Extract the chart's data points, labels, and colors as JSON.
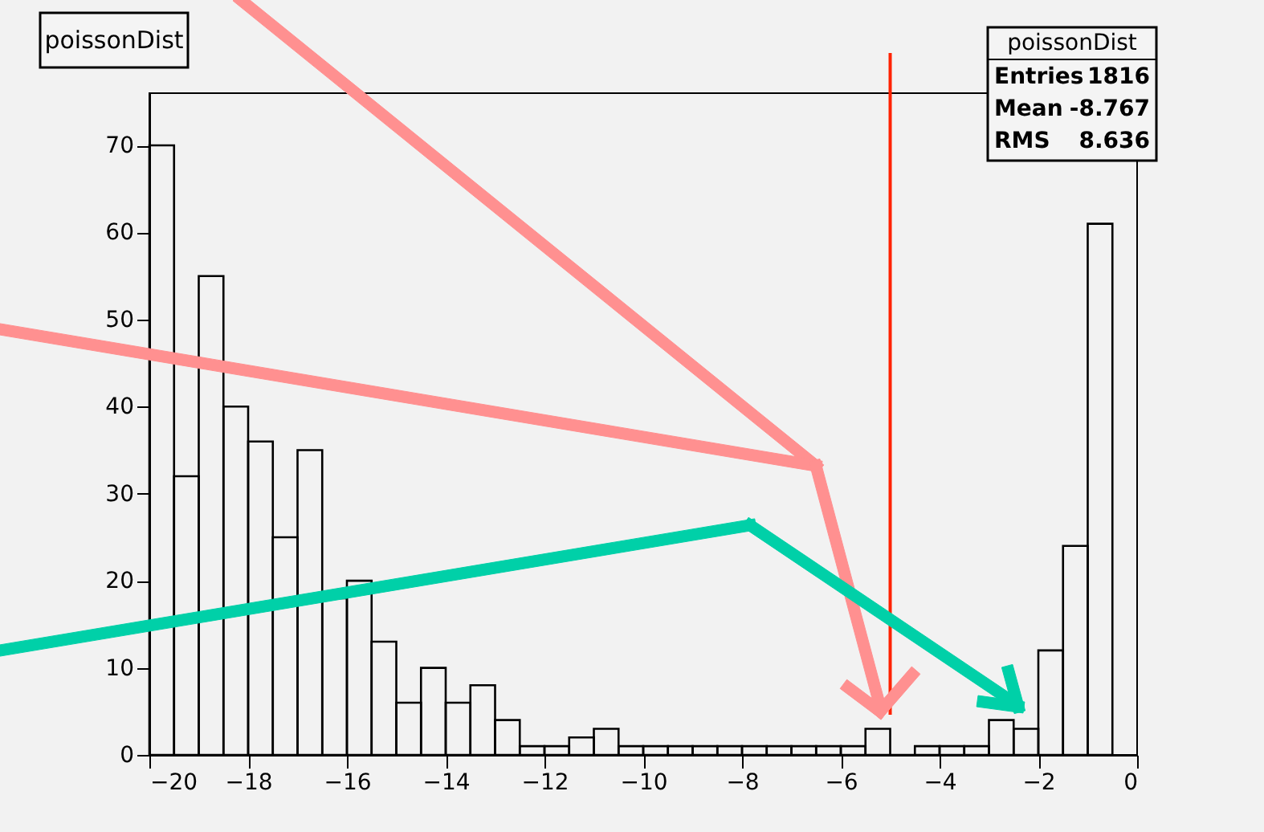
{
  "chart_data": {
    "type": "histogram",
    "title": "poissonDist",
    "bins": [
      -20,
      -19.5,
      -19,
      -18.5,
      -18,
      -17.5,
      -17,
      -16.5,
      -16,
      -15.5,
      -15,
      -14.5,
      -14,
      -13.5,
      -13,
      -12.5,
      -12,
      -11.5,
      -11,
      -10.5,
      -10,
      -9.5,
      -9,
      -8.5,
      -8,
      -7.5,
      -7,
      -6.5,
      -6,
      -5.5,
      -5,
      -4.5,
      -4,
      -3.5,
      -3,
      -2.5,
      -2,
      -1.5,
      -1,
      -0.5,
      0
    ],
    "values": [
      70,
      32,
      55,
      40,
      36,
      25,
      35,
      18,
      20,
      13,
      6,
      10,
      6,
      8,
      4,
      1,
      1,
      2,
      3,
      1,
      1,
      1,
      1,
      1,
      1,
      1,
      1,
      1,
      1,
      3,
      0,
      1,
      1,
      1,
      4,
      3,
      12,
      24,
      61,
      null
    ],
    "color": "#000000",
    "xlim": [
      -20,
      0
    ],
    "ylim": [
      0,
      76
    ],
    "xticks": [
      -20,
      -18,
      -16,
      -14,
      -12,
      -10,
      -8,
      -6,
      -4,
      -2,
      0
    ],
    "yticks": [
      0,
      10,
      20,
      30,
      40,
      50,
      60,
      70
    ],
    "grid": false,
    "ref_lines": [
      {
        "axis": "x",
        "value": -5,
        "color": "#ff2200"
      }
    ],
    "annotations": [
      "poissonDist",
      "Entries",
      "1816",
      "Mean",
      "-8.767",
      "RMS",
      "8.636"
    ]
  }
}
